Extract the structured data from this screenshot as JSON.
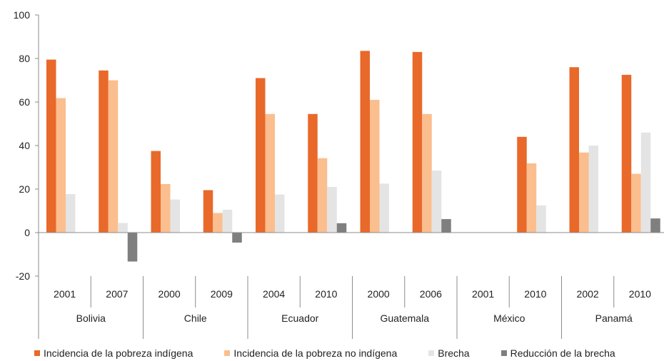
{
  "chart_data": {
    "type": "bar",
    "ylim": [
      -20,
      100
    ],
    "yticks": [
      -20,
      0,
      20,
      40,
      60,
      80,
      100
    ],
    "grid": false,
    "legend_position": "bottom",
    "groups": [
      {
        "name": "Bolivia",
        "years": [
          "2001",
          "2007"
        ]
      },
      {
        "name": "Chile",
        "years": [
          "2000",
          "2009"
        ]
      },
      {
        "name": "Ecuador",
        "years": [
          "2004",
          "2010"
        ]
      },
      {
        "name": "Guatemala",
        "years": [
          "2000",
          "2006"
        ]
      },
      {
        "name": "México",
        "years": [
          "2001",
          "2010"
        ]
      },
      {
        "name": "Panamá",
        "years": [
          "2002",
          "2010"
        ]
      }
    ],
    "categories": [
      "Bolivia 2001",
      "Bolivia 2007",
      "Chile 2000",
      "Chile 2009",
      "Ecuador 2004",
      "Ecuador 2010",
      "Guatemala 2000",
      "Guatemala 2006",
      "México 2001",
      "México 2010",
      "Panamá 2002",
      "Panamá 2010"
    ],
    "series": [
      {
        "name": "Incidencia de la pobreza indígena",
        "color": "#E8692A",
        "values": [
          79.5,
          74.5,
          37.5,
          19.5,
          71,
          54.5,
          83.5,
          83,
          null,
          44,
          76,
          72.5
        ]
      },
      {
        "name": "Incidencia de la pobreza no indígena",
        "color": "#FBBE8E",
        "values": [
          61.8,
          70,
          22.3,
          9,
          54.5,
          34.2,
          61,
          54.5,
          null,
          31.8,
          36.8,
          27
        ]
      },
      {
        "name": "Brecha",
        "color": "#E4E4E4",
        "values": [
          17.7,
          4.4,
          15.2,
          10.5,
          17.5,
          21,
          22.5,
          28.5,
          null,
          12.5,
          40,
          46
        ]
      },
      {
        "name": "Reducción de la brecha",
        "color": "#7F7F7F",
        "values": [
          null,
          -13.3,
          null,
          -4.6,
          null,
          4.3,
          null,
          6.2,
          null,
          null,
          null,
          6.5
        ]
      }
    ]
  }
}
